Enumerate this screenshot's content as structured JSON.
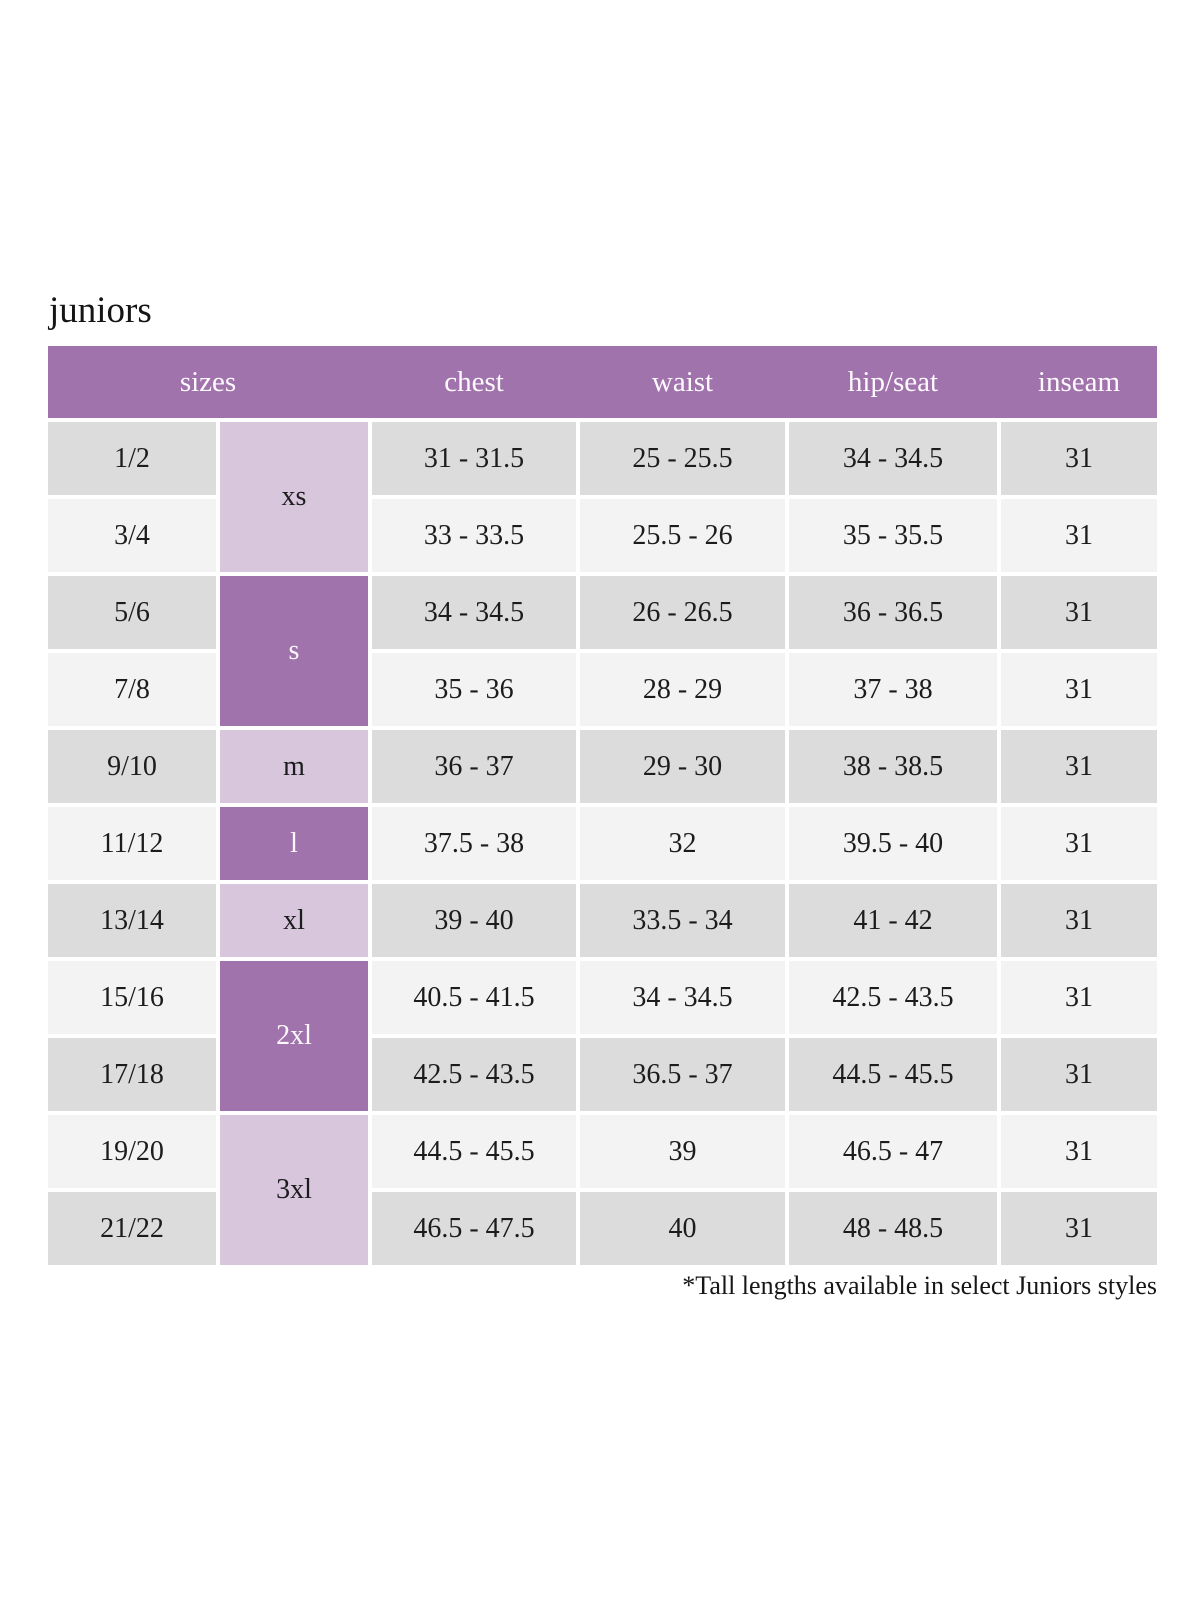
{
  "page": {
    "title": "juniors",
    "footnote": "*Tall lengths available in select Juniors styles"
  },
  "colors": {
    "header_purple": "#a173ad",
    "size_cell_purple_dark": "#a173ad",
    "size_cell_purple_light": "#d8c6dd",
    "row_gray": "#dcdcdc",
    "row_light": "#f4f3f4",
    "header_text": "#ffffff",
    "body_text": "#1c1c1c"
  },
  "table": {
    "headers": [
      "sizes",
      "chest",
      "waist",
      "hip/seat",
      "inseam"
    ],
    "size_groups": [
      {
        "label": "xs",
        "shade": "light",
        "rows": 2
      },
      {
        "label": "s",
        "shade": "dark",
        "rows": 2
      },
      {
        "label": "m",
        "shade": "light",
        "rows": 1
      },
      {
        "label": "l",
        "shade": "dark",
        "rows": 1
      },
      {
        "label": "xl",
        "shade": "light",
        "rows": 1
      },
      {
        "label": "2xl",
        "shade": "dark",
        "rows": 2
      },
      {
        "label": "3xl",
        "shade": "light",
        "rows": 2
      }
    ],
    "rows": [
      {
        "size": "1/2",
        "chest": "31 - 31.5",
        "waist": "25 - 25.5",
        "hip_seat": "34 - 34.5",
        "inseam": "31"
      },
      {
        "size": "3/4",
        "chest": "33 - 33.5",
        "waist": "25.5 - 26",
        "hip_seat": "35 - 35.5",
        "inseam": "31"
      },
      {
        "size": "5/6",
        "chest": "34 - 34.5",
        "waist": "26 - 26.5",
        "hip_seat": "36 - 36.5",
        "inseam": "31"
      },
      {
        "size": "7/8",
        "chest": "35 - 36",
        "waist": "28 - 29",
        "hip_seat": "37 - 38",
        "inseam": "31"
      },
      {
        "size": "9/10",
        "chest": "36 - 37",
        "waist": "29 - 30",
        "hip_seat": "38 - 38.5",
        "inseam": "31"
      },
      {
        "size": "11/12",
        "chest": "37.5 - 38",
        "waist": "32",
        "hip_seat": "39.5 - 40",
        "inseam": "31"
      },
      {
        "size": "13/14",
        "chest": "39 - 40",
        "waist": "33.5 - 34",
        "hip_seat": "41 - 42",
        "inseam": "31"
      },
      {
        "size": "15/16",
        "chest": "40.5 - 41.5",
        "waist": "34 - 34.5",
        "hip_seat": "42.5 - 43.5",
        "inseam": "31"
      },
      {
        "size": "17/18",
        "chest": "42.5 - 43.5",
        "waist": "36.5 - 37",
        "hip_seat": "44.5 - 45.5",
        "inseam": "31"
      },
      {
        "size": "19/20",
        "chest": "44.5 - 45.5",
        "waist": "39",
        "hip_seat": "46.5 - 47",
        "inseam": "31"
      },
      {
        "size": "21/22",
        "chest": "46.5 - 47.5",
        "waist": "40",
        "hip_seat": "48 - 48.5",
        "inseam": "31"
      }
    ]
  }
}
